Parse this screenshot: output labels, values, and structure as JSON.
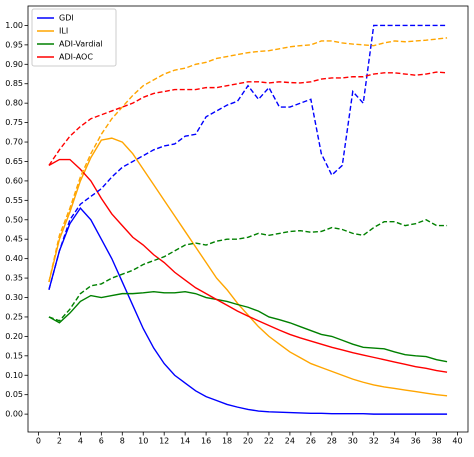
{
  "chart_data": {
    "type": "line",
    "x": [
      1,
      2,
      3,
      4,
      5,
      6,
      7,
      8,
      9,
      10,
      11,
      12,
      13,
      14,
      15,
      16,
      17,
      18,
      19,
      20,
      21,
      22,
      23,
      24,
      25,
      26,
      27,
      28,
      29,
      30,
      31,
      32,
      33,
      34,
      35,
      36,
      37,
      38,
      39
    ],
    "series": [
      {
        "name": "GDI",
        "color": "#0000ff",
        "values": [
          0.32,
          0.42,
          0.49,
          0.53,
          0.5,
          0.45,
          0.4,
          0.34,
          0.28,
          0.22,
          0.17,
          0.13,
          0.1,
          0.08,
          0.06,
          0.045,
          0.035,
          0.025,
          0.018,
          0.012,
          0.008,
          0.006,
          0.005,
          0.004,
          0.003,
          0.002,
          0.002,
          0.001,
          0.001,
          0.001,
          0.001,
          0,
          0,
          0,
          0,
          0,
          0,
          0,
          0
        ]
      },
      {
        "name": "ILI",
        "color": "#ffa500",
        "values": [
          0.34,
          0.45,
          0.52,
          0.6,
          0.66,
          0.705,
          0.71,
          0.7,
          0.67,
          0.63,
          0.59,
          0.55,
          0.51,
          0.47,
          0.43,
          0.39,
          0.35,
          0.32,
          0.285,
          0.255,
          0.225,
          0.2,
          0.18,
          0.16,
          0.145,
          0.13,
          0.12,
          0.11,
          0.1,
          0.09,
          0.082,
          0.075,
          0.07,
          0.066,
          0.062,
          0.058,
          0.054,
          0.05,
          0.047
        ]
      },
      {
        "name": "ADI-Vardial",
        "color": "#008000",
        "values": [
          0.25,
          0.235,
          0.26,
          0.29,
          0.305,
          0.3,
          0.305,
          0.31,
          0.31,
          0.312,
          0.315,
          0.312,
          0.312,
          0.315,
          0.31,
          0.3,
          0.295,
          0.29,
          0.282,
          0.275,
          0.265,
          0.25,
          0.243,
          0.235,
          0.225,
          0.215,
          0.205,
          0.2,
          0.19,
          0.18,
          0.172,
          0.17,
          0.168,
          0.16,
          0.153,
          0.15,
          0.148,
          0.14,
          0.135
        ]
      },
      {
        "name": "ADI-AOC",
        "color": "#ff0000",
        "values": [
          0.64,
          0.655,
          0.655,
          0.63,
          0.6,
          0.555,
          0.515,
          0.485,
          0.455,
          0.435,
          0.41,
          0.39,
          0.365,
          0.345,
          0.325,
          0.31,
          0.295,
          0.28,
          0.265,
          0.252,
          0.24,
          0.228,
          0.216,
          0.205,
          0.196,
          0.188,
          0.18,
          0.172,
          0.165,
          0.158,
          0.152,
          0.146,
          0.14,
          0.134,
          0.128,
          0.122,
          0.118,
          0.112,
          0.108
        ]
      },
      {
        "color": "#0000ff",
        "dashed": true,
        "values": [
          0.32,
          0.42,
          0.5,
          0.54,
          0.56,
          0.58,
          0.61,
          0.635,
          0.65,
          0.665,
          0.68,
          0.69,
          0.695,
          0.715,
          0.72,
          0.765,
          0.78,
          0.795,
          0.805,
          0.845,
          0.81,
          0.84,
          0.79,
          0.79,
          0.8,
          0.81,
          0.67,
          0.615,
          0.64,
          0.83,
          0.8,
          1,
          1,
          1,
          1,
          1,
          1,
          1,
          1
        ]
      },
      {
        "color": "#ffa500",
        "dashed": true,
        "values": [
          0.34,
          0.46,
          0.53,
          0.61,
          0.67,
          0.72,
          0.76,
          0.79,
          0.82,
          0.845,
          0.86,
          0.875,
          0.885,
          0.89,
          0.9,
          0.905,
          0.915,
          0.92,
          0.925,
          0.93,
          0.933,
          0.935,
          0.94,
          0.945,
          0.948,
          0.95,
          0.96,
          0.96,
          0.955,
          0.952,
          0.95,
          0.948,
          0.955,
          0.96,
          0.958,
          0.96,
          0.962,
          0.965,
          0.968
        ]
      },
      {
        "color": "#008000",
        "dashed": true,
        "values": [
          0.25,
          0.24,
          0.27,
          0.31,
          0.33,
          0.335,
          0.35,
          0.36,
          0.37,
          0.385,
          0.395,
          0.405,
          0.42,
          0.435,
          0.44,
          0.435,
          0.445,
          0.45,
          0.45,
          0.455,
          0.465,
          0.46,
          0.465,
          0.47,
          0.472,
          0.468,
          0.47,
          0.48,
          0.475,
          0.465,
          0.46,
          0.48,
          0.495,
          0.495,
          0.485,
          0.49,
          0.5,
          0.485,
          0.485
        ]
      },
      {
        "color": "#ff0000",
        "dashed": true,
        "values": [
          0.64,
          0.68,
          0.715,
          0.74,
          0.76,
          0.77,
          0.78,
          0.79,
          0.8,
          0.815,
          0.825,
          0.83,
          0.835,
          0.835,
          0.835,
          0.84,
          0.84,
          0.845,
          0.85,
          0.855,
          0.855,
          0.852,
          0.855,
          0.853,
          0.852,
          0.855,
          0.862,
          0.865,
          0.865,
          0.868,
          0.868,
          0.875,
          0.878,
          0.878,
          0.875,
          0.872,
          0.875,
          0.88,
          0.878
        ]
      }
    ],
    "xlim": [
      -1,
      41
    ],
    "ylim": [
      -0.046,
      1.05
    ],
    "xticks": [
      0,
      2,
      4,
      6,
      8,
      10,
      12,
      14,
      16,
      18,
      20,
      22,
      24,
      26,
      28,
      30,
      32,
      34,
      36,
      38,
      40
    ],
    "yticks": [
      {
        "value": 0,
        "label": "0.00"
      },
      {
        "value": 0.05,
        "label": "0.05"
      },
      {
        "value": 0.1,
        "label": "0.10"
      },
      {
        "value": 0.15,
        "label": "0.15"
      },
      {
        "value": 0.2,
        "label": "0.20"
      },
      {
        "value": 0.25,
        "label": "0.25"
      },
      {
        "value": 0.3,
        "label": "0.30"
      },
      {
        "value": 0.35,
        "label": "0.35"
      },
      {
        "value": 0.4,
        "label": "0.40"
      },
      {
        "value": 0.45,
        "label": "0.45"
      },
      {
        "value": 0.5,
        "label": "0.50"
      },
      {
        "value": 0.55,
        "label": "0.55"
      },
      {
        "value": 0.6,
        "label": "0.60"
      },
      {
        "value": 0.65,
        "label": "0.65"
      },
      {
        "value": 0.7,
        "label": "0.70"
      },
      {
        "value": 0.75,
        "label": "0.75"
      },
      {
        "value": 0.8,
        "label": "0.80"
      },
      {
        "value": 0.85,
        "label": "0.85"
      },
      {
        "value": 0.9,
        "label": "0.90"
      },
      {
        "value": 0.95,
        "label": "0.95"
      },
      {
        "value": 1,
        "label": "1.00"
      }
    ],
    "legend": "upper left"
  }
}
